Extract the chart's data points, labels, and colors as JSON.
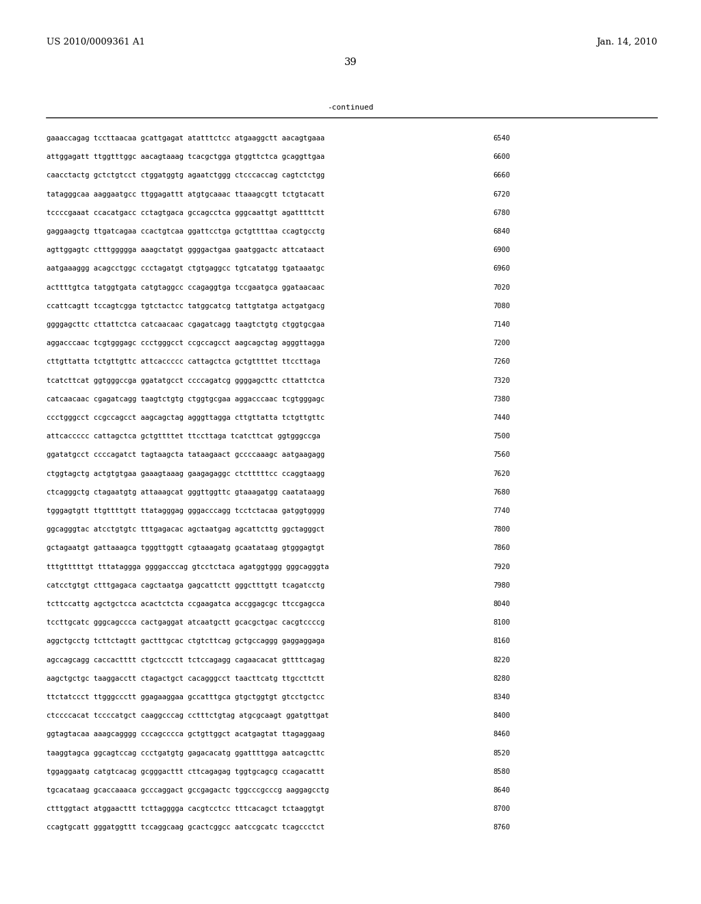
{
  "header_left": "US 2010/0009361 A1",
  "header_right": "Jan. 14, 2010",
  "page_number": "39",
  "continued_label": "-continued",
  "background_color": "#ffffff",
  "text_color": "#000000",
  "seq_font_size": 7.5,
  "header_font_size": 9.5,
  "page_num_font_size": 10.5,
  "sequences": [
    {
      "seq": "gaaaccagag tccttaacaa gcattgagat atatttctcc atgaaggctt aacagtgaaa",
      "num": "6540"
    },
    {
      "seq": "attggagatt ttggtttggc aacagtaaag tcacgctgga gtggttctca gcaggttgaa",
      "num": "6600"
    },
    {
      "seq": "caacctactg gctctgtcct ctggatggtg agaatctggg ctcccaccag cagtctctgg",
      "num": "6660"
    },
    {
      "seq": "tatagggcaa aaggaatgcc ttggagattt atgtgcaaac ttaaagcgtt tctgtacatt",
      "num": "6720"
    },
    {
      "seq": "tccccgaaat ccacatgacc cctagtgaca gccagcctca gggcaattgt agattttctt",
      "num": "6780"
    },
    {
      "seq": "gaggaagctg ttgatcagaa ccactgtcaa ggattcctga gctgttttaa ccagtgcctg",
      "num": "6840"
    },
    {
      "seq": "agttggagtc ctttggggga aaagctatgt ggggactgaa gaatggactc attcataact",
      "num": "6900"
    },
    {
      "seq": "aatgaaaggg acagcctggc ccctagatgt ctgtgaggcc tgtcatatgg tgataaatgc",
      "num": "6960"
    },
    {
      "seq": "acttttgtca tatggtgata catgtaggcc ccagaggtga tccgaatgca ggataacaac",
      "num": "7020"
    },
    {
      "seq": "ccattcagtt tccagtcgga tgtctactcc tatggcatcg tattgtatga actgatgacg",
      "num": "7080"
    },
    {
      "seq": "ggggagcttc cttattctca catcaacaac cgagatcagg taagtctgtg ctggtgcgaa",
      "num": "7140"
    },
    {
      "seq": "aggacccaac tcgtgggagc ccctgggcct ccgccagcct aagcagctag agggttagga",
      "num": "7200"
    },
    {
      "seq": "cttgttatta tctgttgttc attcaccccc cattagctca gctgttttet ttccttaga",
      "num": "7260"
    },
    {
      "seq": "tcatcttcat ggtgggccga ggatatgcct ccccagatcg ggggagcttc cttattctca",
      "num": "7320"
    },
    {
      "seq": "catcaacaac cgagatcagg taagtctgtg ctggtgcgaa aggacccaac tcgtgggagc",
      "num": "7380"
    },
    {
      "seq": "ccctgggcct ccgccagcct aagcagctag agggttagga cttgttatta tctgttgttc",
      "num": "7440"
    },
    {
      "seq": "attcaccccc cattagctca gctgttttet ttccttaga tcatcttcat ggtgggccga",
      "num": "7500"
    },
    {
      "seq": "ggatatgcct ccccagatct tagtaagcta tataagaact gccccaaagc aatgaagagg",
      "num": "7560"
    },
    {
      "seq": "ctggtagctg actgtgtgaa gaaagtaaag gaagagaggc ctctttttcc ccaggtaagg",
      "num": "7620"
    },
    {
      "seq": "ctcagggctg ctagaatgtg attaaagcat gggttggttc gtaaagatgg caatataagg",
      "num": "7680"
    },
    {
      "seq": "tgggagtgtt ttgttttgtt ttatagggag gggacccagg tcctctacaa gatggtgggg",
      "num": "7740"
    },
    {
      "seq": "ggcagggtac atcctgtgtc tttgagacac agctaatgag agcattcttg ggctagggct",
      "num": "7800"
    },
    {
      "seq": "gctagaatgt gattaaagca tgggttggtt cgtaaagatg gcaatataag gtgggagtgt",
      "num": "7860"
    },
    {
      "seq": "tttgtttttgt tttataggga ggggacccag gtcctctaca agatggtggg gggcagggta",
      "num": "7920"
    },
    {
      "seq": "catcctgtgt ctttgagaca cagctaatga gagcattctt gggctttgtt tcagatcctg",
      "num": "7980"
    },
    {
      "seq": "tcttccattg agctgctcca acactctcta ccgaagatca accggagcgc ttccgagcca",
      "num": "8040"
    },
    {
      "seq": "tccttgcatc gggcagccca cactgaggat atcaatgctt gcacgctgac cacgtccccg",
      "num": "8100"
    },
    {
      "seq": "aggctgcctg tcttctagtt gactttgcac ctgtcttcag gctgccaggg gaggaggaga",
      "num": "8160"
    },
    {
      "seq": "agccagcagg caccactttt ctgctccctt tctccagagg cagaacacat gttttcagag",
      "num": "8220"
    },
    {
      "seq": "aagctgctgc taaggacctt ctagactgct cacagggcct taacttcatg ttgccttctt",
      "num": "8280"
    },
    {
      "seq": "ttctatccct ttgggccctt ggagaaggaa gccatttgca gtgctggtgt gtcctgctcc",
      "num": "8340"
    },
    {
      "seq": "ctccccacat tccccatgct caaggcccag cctttctgtag atgcgcaagt ggatgttgat",
      "num": "8400"
    },
    {
      "seq": "ggtagtacaa aaagcagggg cccagcccca gctgttggct acatgagtat ttagaggaag",
      "num": "8460"
    },
    {
      "seq": "taaggtagca ggcagtccag ccctgatgtg gagacacatg ggattttgga aatcagcttc",
      "num": "8520"
    },
    {
      "seq": "tggaggaatg catgtcacag gcgggacttt cttcagagag tggtgcagcg ccagacattt",
      "num": "8580"
    },
    {
      "seq": "tgcacataag gcaccaaaca gcccaggact gccgagactc tggcccgcccg aaggagcctg",
      "num": "8640"
    },
    {
      "seq": "ctttggtact atggaacttt tcttagggga cacgtcctcc tttcacagct tctaaggtgt",
      "num": "8700"
    },
    {
      "seq": "ccagtgcatt gggatggttt tccaggcaag gcactcggcc aatccgcatc tcagccctct",
      "num": "8760"
    }
  ]
}
